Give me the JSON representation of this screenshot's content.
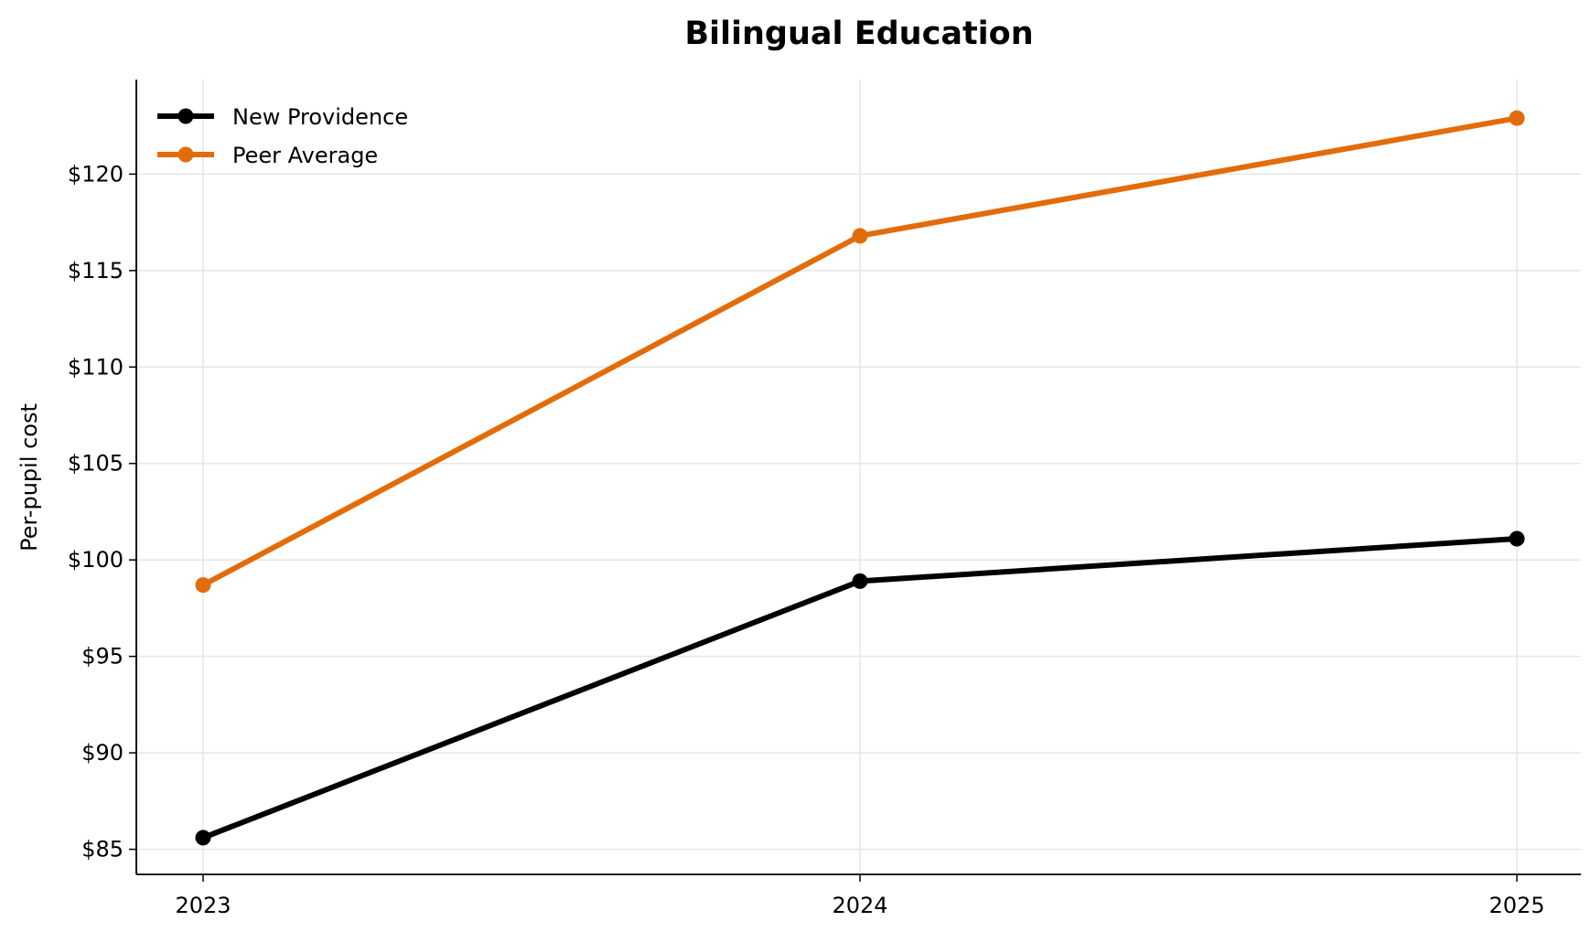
{
  "chart_data": {
    "type": "line",
    "title": "Bilingual Education",
    "xlabel": "",
    "ylabel": "Per-pupil cost",
    "categories": [
      "2023",
      "2024",
      "2025"
    ],
    "series": [
      {
        "name": "New Providence",
        "values": [
          85.6,
          98.9,
          101.1
        ],
        "color": "#000000"
      },
      {
        "name": "Peer Average",
        "values": [
          98.7,
          116.8,
          122.9
        ],
        "color": "#E36C0A"
      }
    ],
    "ylim": [
      83.7,
      124.9
    ],
    "yticks": [
      85,
      90,
      95,
      100,
      105,
      110,
      115,
      120
    ],
    "ytick_labels": [
      "$85",
      "$90",
      "$95",
      "$100",
      "$105",
      "$110",
      "$115",
      "$120"
    ],
    "grid": true,
    "legend": "top-left"
  }
}
